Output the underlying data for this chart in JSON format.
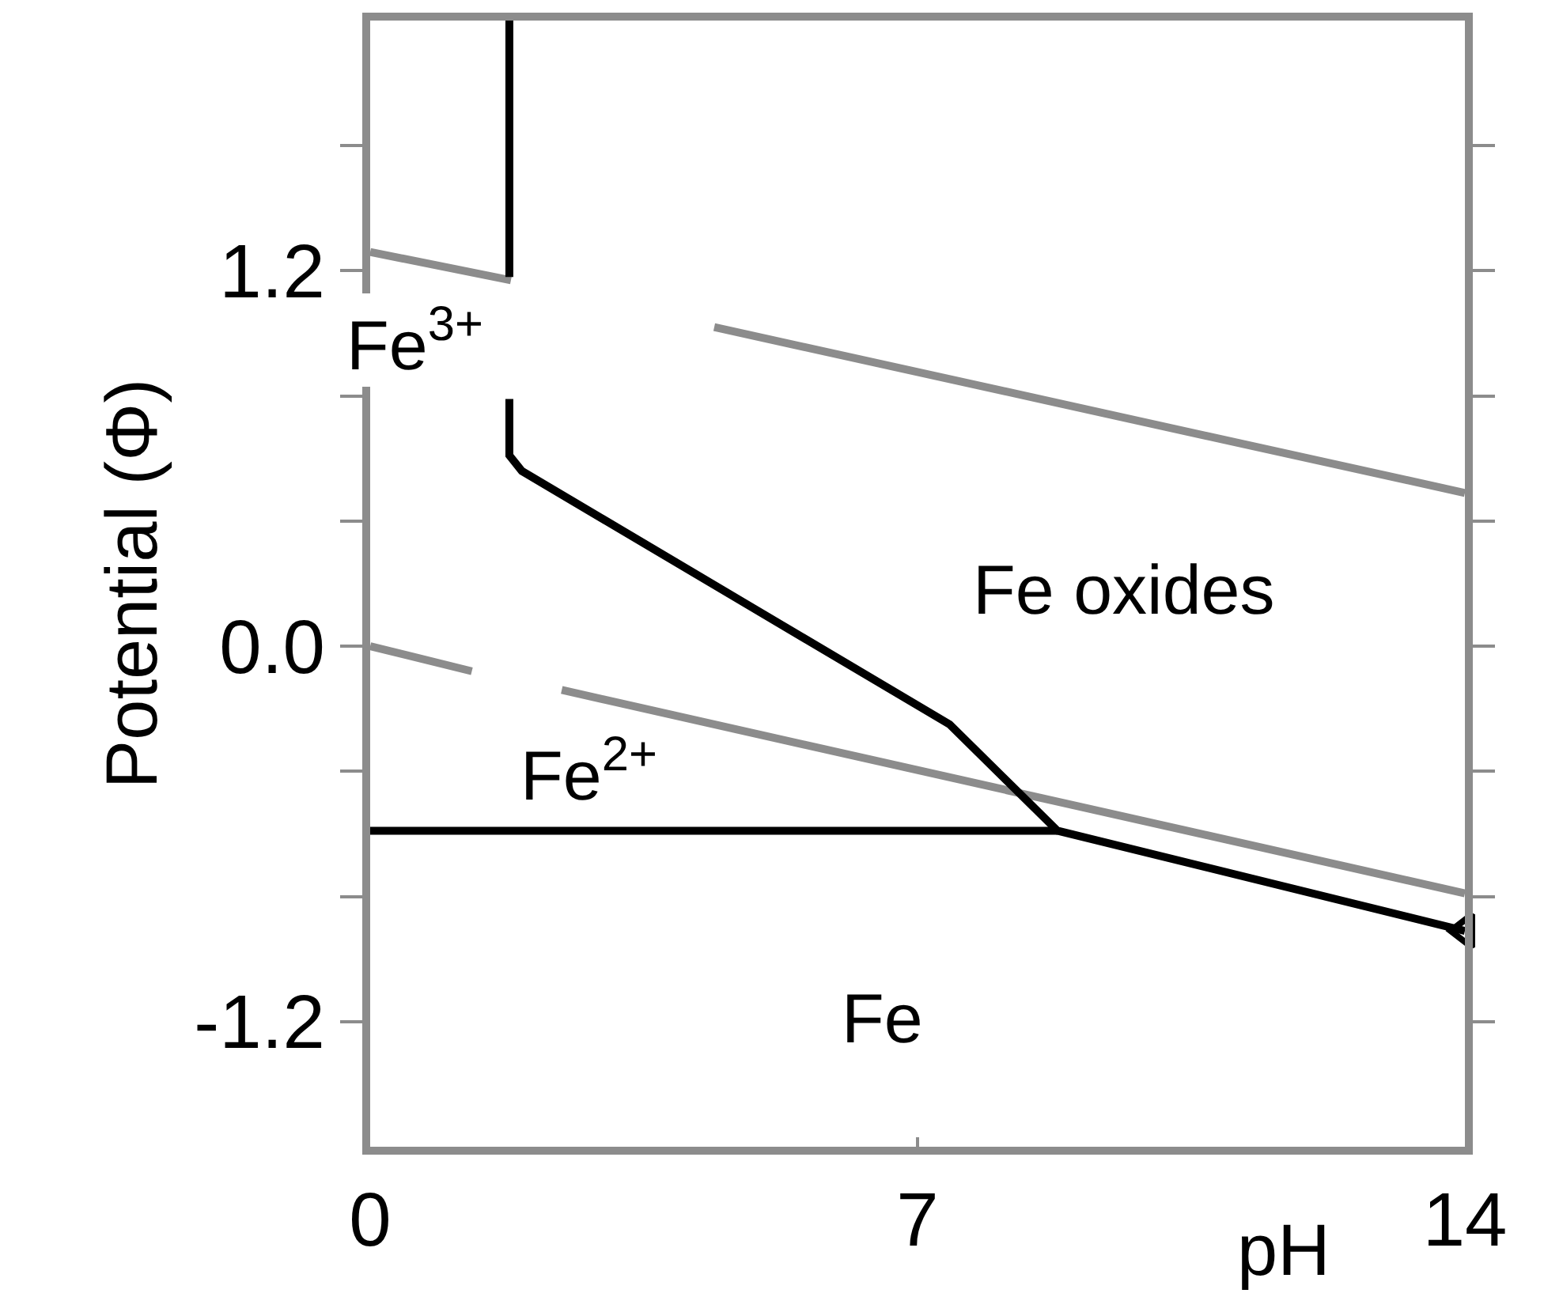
{
  "chart_data": {
    "type": "line",
    "xlabel": "pH",
    "ylabel": "Potential (Φ)",
    "xlim": [
      0,
      14
    ],
    "xticks": [
      0,
      7,
      14
    ],
    "ylim": [
      -1.6,
      2.0
    ],
    "yticks": [
      {
        "value": 1.6,
        "label": null
      },
      1.2,
      {
        "value": 0.8,
        "label": null
      },
      {
        "value": 0.4,
        "label": null
      },
      {
        "value": 0.0,
        "label": "0.0"
      },
      {
        "value": -0.4,
        "label": null
      },
      {
        "value": -0.8,
        "label": null
      },
      -1.2
    ],
    "line_style": "solid",
    "marker": "none",
    "series": [
      {
        "color": "#8c8c8c",
        "x": [
          0,
          1.8,
          3.0,
          4.4,
          14
        ],
        "values": [
          1.26,
          1.17,
          null,
          1.02,
          0.49
        ]
      },
      {
        "color": "#8c8c8c",
        "x": [
          0,
          1.3,
          1.9,
          2.45,
          14
        ],
        "values": [
          0.0,
          -0.08,
          null,
          -0.14,
          -0.79
        ]
      },
      {
        "color": "#000000",
        "x": [
          1.78,
          1.78,
          null,
          1.78,
          1.78,
          1.94,
          7.41,
          8.79,
          14
        ],
        "values": [
          2.0,
          1.18,
          null,
          0.79,
          0.61,
          0.56,
          -0.25,
          -0.59,
          -0.91
        ]
      },
      {
        "color": "#000000",
        "x": [
          0,
          8.79
        ],
        "values": [
          -0.59,
          -0.59
        ]
      },
      {
        "type": "scatter",
        "marker": "triangle",
        "color": "#000000",
        "x": [
          14
        ],
        "values": [
          -0.91
        ]
      }
    ],
    "annotations": [
      "Fe$^{3+}$",
      "Fe oxides",
      "Fe$^{2+}$",
      "Fe"
    ]
  }
}
